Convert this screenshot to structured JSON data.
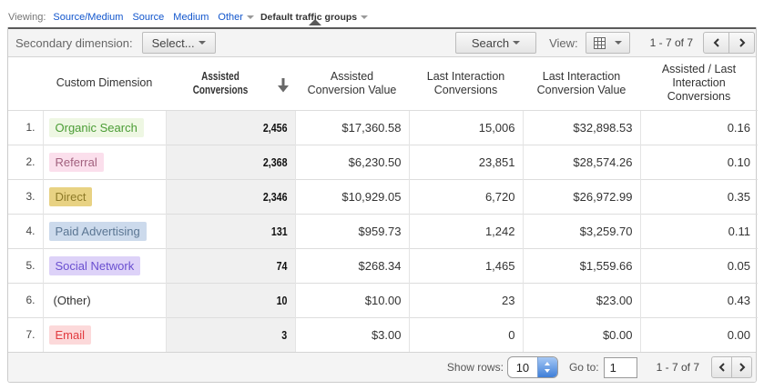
{
  "viewing": {
    "label": "Viewing:",
    "links": [
      "Source/Medium",
      "Source",
      "Medium"
    ],
    "other_label": "Other",
    "selected": "Default traffic groups"
  },
  "toolbar": {
    "secondary_dimension_label": "Secondary dimension:",
    "select_button_label": "Select...",
    "search_button_label": "Search",
    "view_label": "View:",
    "range": "1 - 7 of 7"
  },
  "table": {
    "columns": [
      "Custom Dimension",
      "Assisted Conversions",
      "Assisted Conversion Value",
      "Last Interaction Conversions",
      "Last Interaction Conversion Value",
      "Assisted / Last Interaction Conversions"
    ],
    "sort_icon": "descending",
    "rows": [
      {
        "num": "1.",
        "label": "Organic Search",
        "pill_bg": "#eef7e3",
        "pill_color": "#4a9c35",
        "assisted_conversions": "2,456",
        "assisted_conversion_value": "$17,360.58",
        "last_interaction_conversions": "15,006",
        "last_interaction_conversion_value": "$32,898.53",
        "ratio": "0.16"
      },
      {
        "num": "2.",
        "label": "Referral",
        "pill_bg": "#fbdfec",
        "pill_color": "#a2617e",
        "assisted_conversions": "2,368",
        "assisted_conversion_value": "$6,230.50",
        "last_interaction_conversions": "23,851",
        "last_interaction_conversion_value": "$28,574.26",
        "ratio": "0.10"
      },
      {
        "num": "3.",
        "label": "Direct",
        "pill_bg": "#e8d283",
        "pill_color": "#8d7a28",
        "assisted_conversions": "2,346",
        "assisted_conversion_value": "$10,929.05",
        "last_interaction_conversions": "6,720",
        "last_interaction_conversion_value": "$26,972.99",
        "ratio": "0.35"
      },
      {
        "num": "4.",
        "label": "Paid Advertising",
        "pill_bg": "#ccdaec",
        "pill_color": "#5b7693",
        "assisted_conversions": "131",
        "assisted_conversion_value": "$959.73",
        "last_interaction_conversions": "1,242",
        "last_interaction_conversion_value": "$3,259.70",
        "ratio": "0.11"
      },
      {
        "num": "5.",
        "label": "Social Network",
        "pill_bg": "#ddd2f8",
        "pill_color": "#6a4fd0",
        "assisted_conversions": "74",
        "assisted_conversion_value": "$268.34",
        "last_interaction_conversions": "1,465",
        "last_interaction_conversion_value": "$1,559.66",
        "ratio": "0.05"
      },
      {
        "num": "6.",
        "label": "(Other)",
        "pill_bg": "",
        "pill_color": "",
        "assisted_conversions": "10",
        "assisted_conversion_value": "$10.00",
        "last_interaction_conversions": "23",
        "last_interaction_conversion_value": "$23.00",
        "ratio": "0.43"
      },
      {
        "num": "7.",
        "label": "Email",
        "pill_bg": "#fcd9da",
        "pill_color": "#e23a3f",
        "assisted_conversions": "3",
        "assisted_conversion_value": "$3.00",
        "last_interaction_conversions": "0",
        "last_interaction_conversion_value": "$0.00",
        "ratio": "0.00"
      }
    ]
  },
  "footer": {
    "show_rows_label": "Show rows:",
    "show_rows_value": "10",
    "goto_label": "Go to:",
    "goto_value": "1",
    "range": "1 - 7 of 7"
  }
}
